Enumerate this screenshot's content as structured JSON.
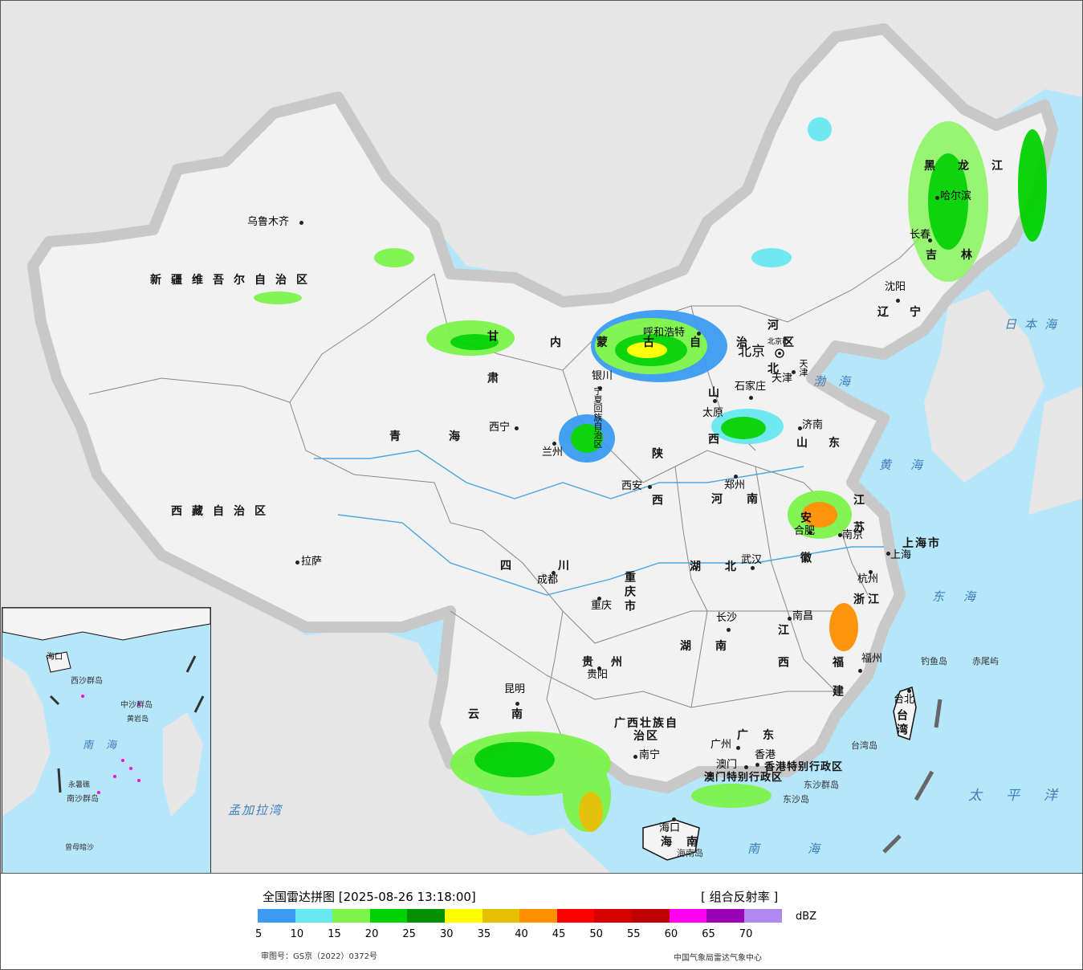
{
  "map": {
    "cities": [
      "乌鲁木齐",
      "拉萨",
      "西宁",
      "兰州",
      "银川",
      "呼和浩特",
      "北京",
      "天津",
      "石家庄",
      "太原",
      "济南",
      "郑州",
      "西安",
      "成都",
      "重庆",
      "武汉",
      "合肥",
      "南京",
      "上海",
      "杭州",
      "南昌",
      "长沙",
      "贵阳",
      "昆明",
      "南宁",
      "广州",
      "香港",
      "澳门",
      "福州",
      "台北",
      "海口",
      "长春",
      "哈尔滨",
      "沈阳"
    ],
    "provinces": [
      "新疆维吾尔自治区",
      "西藏自治区",
      "青海",
      "甘肃",
      "内蒙古自治区",
      "黑龙江",
      "吉林",
      "辽宁",
      "河北",
      "山西",
      "山东",
      "河南",
      "陕西",
      "四川",
      "重庆市",
      "湖北",
      "安徽",
      "江苏",
      "上海市",
      "浙江",
      "江西",
      "湖南",
      "贵州",
      "云南",
      "广西壮族自治区",
      "广东",
      "福建",
      "台湾",
      "海南",
      "香港特别行政区",
      "澳门特别行政区",
      "宁夏回族自治区",
      "天津",
      "北京市"
    ],
    "seas": [
      "日本海",
      "渤海",
      "黄海",
      "东海",
      "太平洋",
      "南海",
      "孟加拉湾"
    ],
    "islands": [
      "钓鱼岛",
      "赤尾屿",
      "台湾岛",
      "海南岛",
      "东沙群岛",
      "东沙岛"
    ],
    "inset_labels": [
      "南海",
      "海口",
      "中沙群岛",
      "西沙群岛",
      "南沙群岛",
      "永暑礁",
      "曾母暗沙",
      "黄岩岛"
    ]
  },
  "legend": {
    "title": "全国雷达拼图 [2025-08-26 13:18:00]",
    "product": "[ 组合反射率 ]",
    "unit": "dBZ",
    "colors": [
      "#3a9bf0",
      "#67e8f0",
      "#7cf44a",
      "#00d200",
      "#009000",
      "#ffff00",
      "#e6c000",
      "#ff9000",
      "#ff0000",
      "#d60000",
      "#c00000",
      "#ff00f0",
      "#9c00b4",
      "#b088f0"
    ],
    "ticks": [
      "5",
      "10",
      "15",
      "20",
      "25",
      "30",
      "35",
      "40",
      "45",
      "50",
      "55",
      "60",
      "65",
      "70"
    ]
  },
  "footer": {
    "approval": "审图号：GS京（2022）0372号",
    "agency": "中国气象局雷达气象中心"
  }
}
